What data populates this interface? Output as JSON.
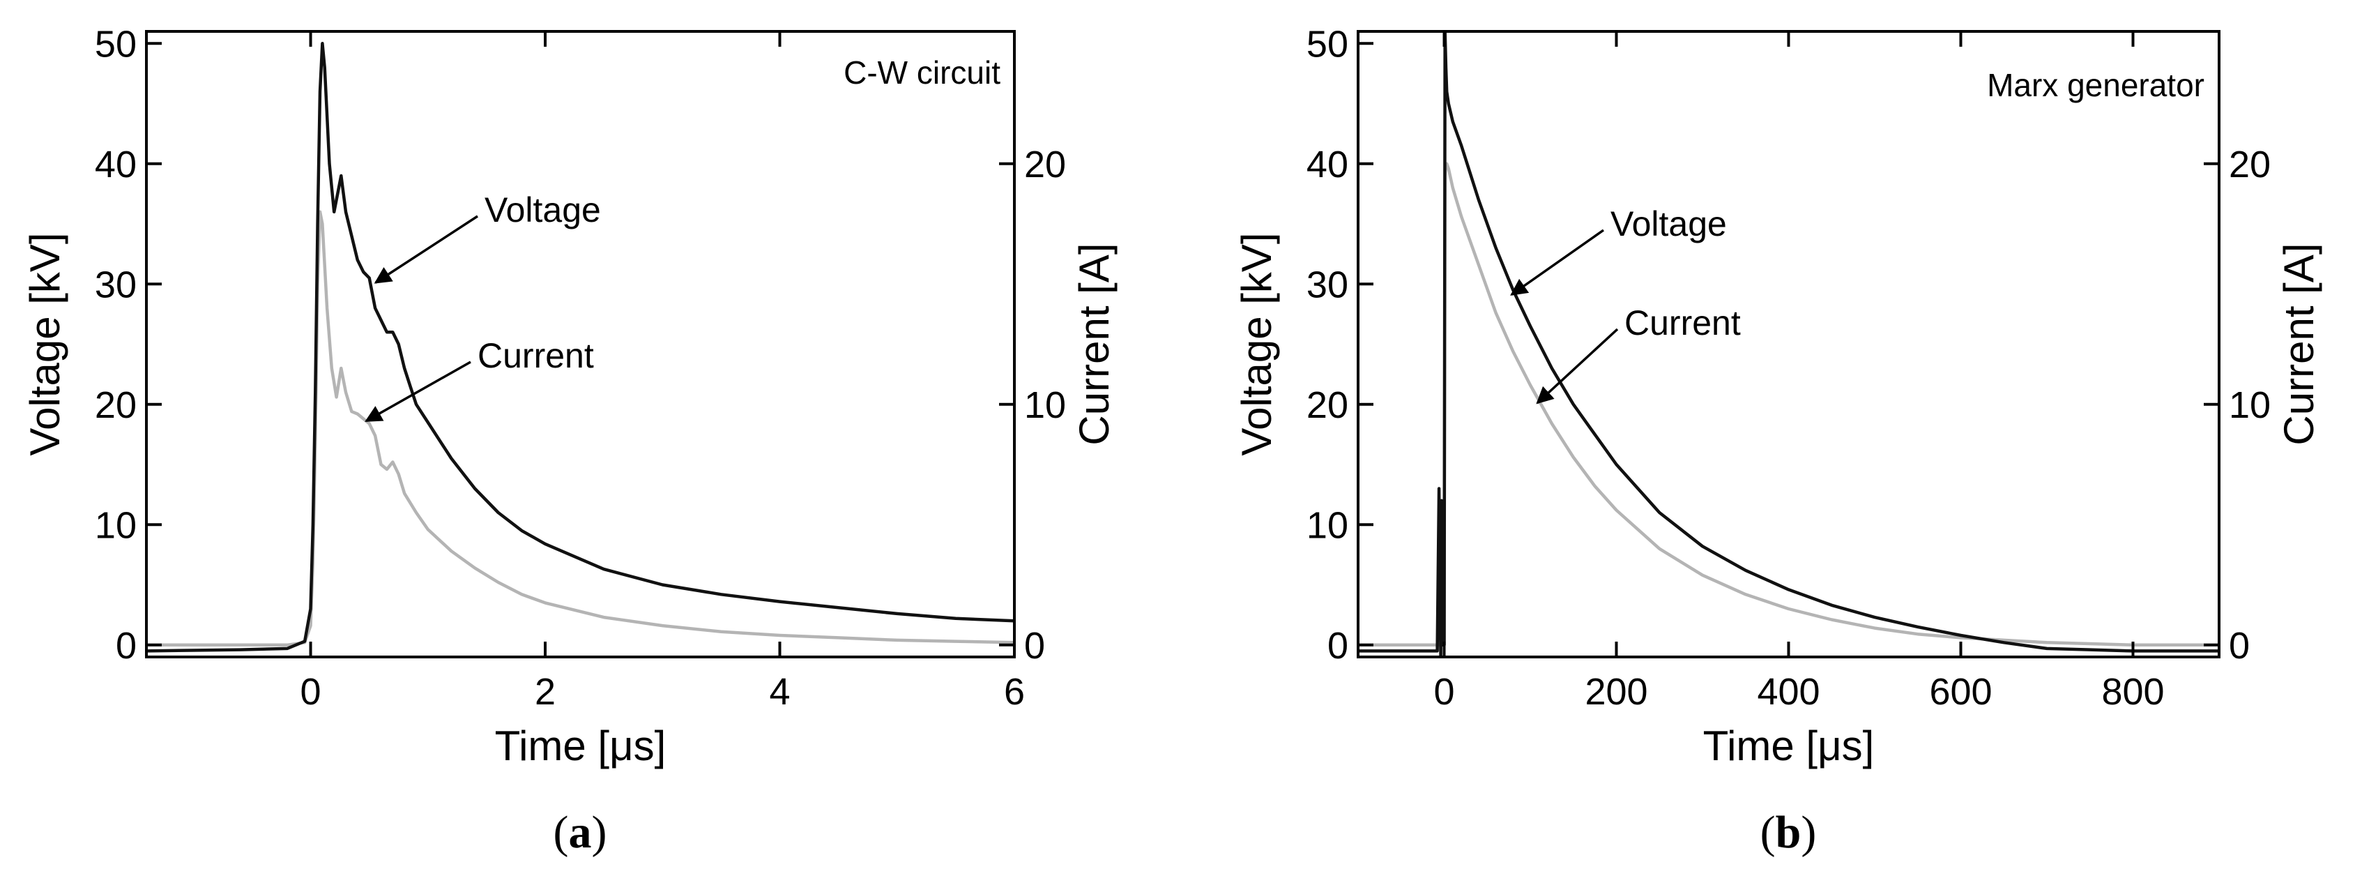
{
  "colors": {
    "voltage": "#111111",
    "current": "#b4b4b4",
    "axis": "#000000"
  },
  "chart_data": [
    {
      "type": "line",
      "caption_open": "(",
      "caption_letter": "a",
      "caption_close": ")",
      "panel_label": "C-W circuit",
      "xlabel": "Time [μs]",
      "ylabel_left": "Voltage [kV]",
      "ylabel_right": "Current [A]",
      "xlim": [
        -1.4,
        6
      ],
      "ylim_left": [
        -1,
        51
      ],
      "ylim_right": [
        -0.5,
        25.5
      ],
      "xticks": [
        0,
        2,
        4,
        6
      ],
      "xtick_labels": [
        "0",
        "2",
        "4",
        "6"
      ],
      "yticks_left": [
        0,
        10,
        20,
        30,
        40,
        50
      ],
      "ytick_labels_left": [
        "0",
        "10",
        "20",
        "30",
        "40",
        "50"
      ],
      "yticks_right": [
        0,
        10,
        20
      ],
      "ytick_labels_right": [
        "0",
        "10",
        "20"
      ],
      "annotations": [
        {
          "text": "Voltage",
          "series": "Voltage",
          "target": [
            0.53,
            30
          ]
        },
        {
          "text": "Current",
          "series": "Current",
          "target": [
            0.45,
            18.5
          ]
        }
      ],
      "series": [
        {
          "name": "Voltage",
          "axis": "left",
          "x": [
            -1.4,
            -0.6,
            -0.2,
            -0.05,
            0.0,
            0.02,
            0.04,
            0.06,
            0.08,
            0.1,
            0.12,
            0.16,
            0.2,
            0.26,
            0.3,
            0.35,
            0.4,
            0.45,
            0.5,
            0.55,
            0.6,
            0.65,
            0.7,
            0.75,
            0.8,
            0.85,
            0.9,
            1.0,
            1.2,
            1.4,
            1.6,
            1.8,
            2.0,
            2.5,
            3.0,
            3.5,
            4.0,
            4.5,
            5.0,
            5.5,
            6.0
          ],
          "y": [
            -0.5,
            -0.4,
            -0.3,
            0.3,
            3,
            10,
            21,
            35,
            46,
            50,
            48,
            40,
            36,
            39,
            36,
            34,
            32,
            31,
            30.5,
            28,
            27,
            26,
            26,
            25,
            23,
            21.5,
            20,
            18.5,
            15.5,
            13,
            11,
            9.5,
            8.4,
            6.3,
            5.0,
            4.2,
            3.6,
            3.1,
            2.6,
            2.2,
            2.0
          ]
        },
        {
          "name": "Current",
          "axis": "right",
          "x": [
            -1.4,
            -0.6,
            -0.2,
            -0.05,
            0.0,
            0.02,
            0.04,
            0.06,
            0.08,
            0.1,
            0.14,
            0.18,
            0.22,
            0.26,
            0.3,
            0.35,
            0.4,
            0.5,
            0.55,
            0.6,
            0.65,
            0.7,
            0.75,
            0.8,
            0.9,
            1.0,
            1.2,
            1.4,
            1.6,
            1.8,
            2.0,
            2.5,
            3.0,
            3.5,
            4.0,
            4.5,
            5.0,
            5.5,
            6.0
          ],
          "y": [
            0.0,
            0.0,
            0.0,
            0.1,
            0.8,
            3.5,
            8.5,
            15,
            18,
            17.5,
            14,
            11.5,
            10.3,
            11.5,
            10.5,
            9.7,
            9.6,
            9.2,
            8.7,
            7.5,
            7.3,
            7.6,
            7.1,
            6.3,
            5.5,
            4.8,
            3.9,
            3.2,
            2.6,
            2.1,
            1.75,
            1.15,
            0.8,
            0.55,
            0.4,
            0.3,
            0.2,
            0.15,
            0.1
          ]
        }
      ]
    },
    {
      "type": "line",
      "caption_open": "(",
      "caption_letter": "b",
      "caption_close": ")",
      "panel_label": "Marx generator",
      "xlabel": "Time [μs]",
      "ylabel_left": "Voltage [kV]",
      "ylabel_right": "Current [A]",
      "xlim": [
        -100,
        900
      ],
      "ylim_left": [
        -1,
        51
      ],
      "ylim_right": [
        -0.5,
        25.5
      ],
      "xticks": [
        0,
        200,
        400,
        600,
        800
      ],
      "xtick_labels": [
        "0",
        "200",
        "400",
        "600",
        "800"
      ],
      "yticks_left": [
        0,
        10,
        20,
        30,
        40,
        50
      ],
      "ytick_labels_left": [
        "0",
        "10",
        "20",
        "30",
        "40",
        "50"
      ],
      "yticks_right": [
        0,
        10,
        20
      ],
      "ytick_labels_right": [
        "0",
        "10",
        "20"
      ],
      "annotations": [
        {
          "text": "Voltage",
          "series": "Voltage",
          "target": [
            75,
            29
          ]
        },
        {
          "text": "Current",
          "series": "Current",
          "target": [
            105,
            20
          ]
        }
      ],
      "series": [
        {
          "name": "Voltage",
          "axis": "left",
          "x": [
            -100,
            -20,
            -8,
            -6,
            -5,
            -4,
            -3,
            -2,
            0,
            1,
            2,
            3,
            5,
            10,
            20,
            40,
            60,
            80,
            100,
            125,
            150,
            175,
            200,
            250,
            300,
            350,
            400,
            450,
            500,
            550,
            600,
            650,
            700,
            750,
            800,
            850,
            900
          ],
          "y": [
            -0.5,
            -0.5,
            -0.5,
            13,
            5,
            -1,
            12,
            0,
            0,
            51,
            48,
            46,
            45,
            43.5,
            41.5,
            37,
            33,
            29.5,
            26.5,
            23,
            20,
            17.5,
            15,
            11,
            8.2,
            6.2,
            4.6,
            3.3,
            2.3,
            1.5,
            0.8,
            0.2,
            -0.3,
            -0.4,
            -0.5,
            -0.5,
            -0.5
          ]
        },
        {
          "name": "Current",
          "axis": "right",
          "x": [
            -100,
            -20,
            -5,
            -3,
            0,
            1,
            2,
            3,
            5,
            10,
            20,
            40,
            60,
            80,
            100,
            125,
            150,
            175,
            200,
            250,
            300,
            350,
            400,
            450,
            500,
            550,
            600,
            650,
            700,
            750,
            800,
            850,
            900
          ],
          "y": [
            0.0,
            0.0,
            0.0,
            0.0,
            0.0,
            19.5,
            20,
            20,
            19.8,
            19,
            17.8,
            15.8,
            13.8,
            12.2,
            10.8,
            9.2,
            7.8,
            6.6,
            5.6,
            4.0,
            2.9,
            2.1,
            1.5,
            1.05,
            0.7,
            0.45,
            0.3,
            0.2,
            0.1,
            0.05,
            0.0,
            0.0,
            0.0
          ]
        }
      ]
    }
  ]
}
